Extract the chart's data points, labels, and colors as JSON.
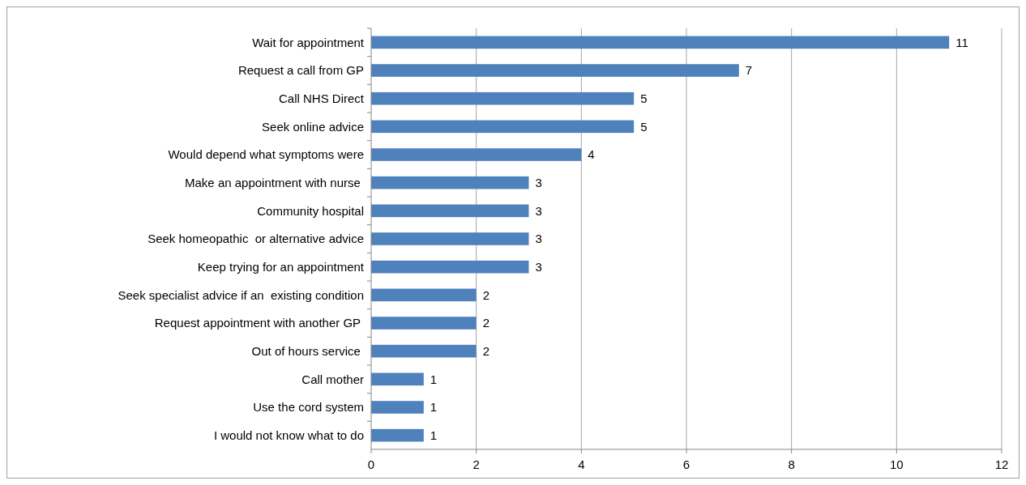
{
  "chart_data": {
    "type": "bar",
    "orientation": "horizontal",
    "categories": [
      "Wait for appointment",
      "Request a call from GP",
      "Call NHS Direct",
      "Seek online advice",
      "Would depend what symptoms were",
      "Make an appointment with nurse ",
      "Community hospital",
      "Seek homeopathic  or alternative advice",
      "Keep trying for an appointment",
      "Seek specialist advice if an  existing condition",
      "Request appointment with another GP ",
      "Out of hours service ",
      "Call mother",
      "Use the cord system",
      "I would not know what to do"
    ],
    "values": [
      11,
      7,
      5,
      5,
      4,
      3,
      3,
      3,
      3,
      2,
      2,
      2,
      1,
      1,
      1
    ],
    "color": "#4f81bd",
    "xlim": [
      0,
      12
    ],
    "xticks": [
      0,
      2,
      4,
      6,
      8,
      10,
      12
    ],
    "grid": "x",
    "data_labels": true
  }
}
